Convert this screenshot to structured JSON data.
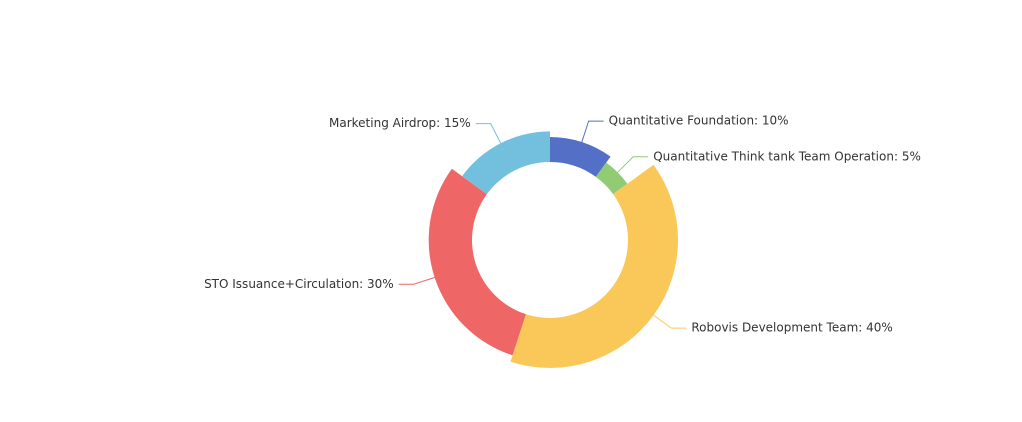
{
  "chart_data": {
    "type": "pie",
    "rose": true,
    "values": [
      10,
      5,
      40,
      30,
      15
    ],
    "value_labels": [
      "Quantitative Foundation: 10%",
      "Quantitative Think tank Team Operation: 5%",
      "Robovis Development Team: 40%",
      "STO Issuance+Circulation: 30%",
      "Marketing Airdrop: 15%"
    ],
    "colors": [
      "#5470c6",
      "#91cc75",
      "#fac858",
      "#ee6666",
      "#73c0de"
    ]
  }
}
